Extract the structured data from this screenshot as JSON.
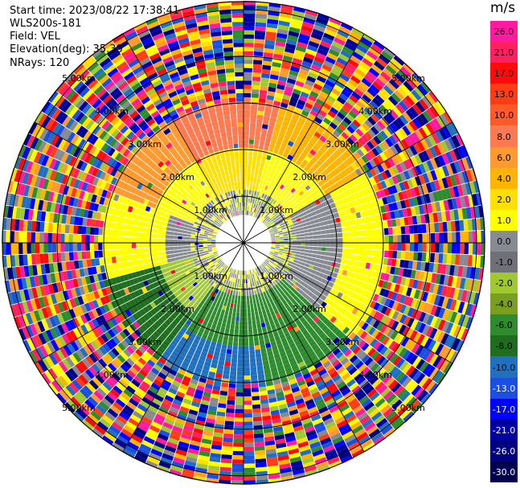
{
  "header": {
    "start_time": "Start time: 2023/08/22 17:38:41",
    "instrument": "WLS200s-181",
    "field": "Field: VEL",
    "elevation": "Elevation(deg): 35.30",
    "nrays": "NRays: 120"
  },
  "colorbar": {
    "unit": "m/s",
    "labels": [
      "26.0",
      "21.0",
      "17.0",
      "13.0",
      "10.0",
      "8.0",
      "6.0",
      "4.0",
      "2.0",
      "1.0",
      "0.0",
      "-1.0",
      "-2.0",
      "-4.0",
      "-6.0",
      "-8.0",
      "-10.0",
      "-13.0",
      "-17.0",
      "-21.0",
      "-26.0",
      "-30.0"
    ],
    "colors": [
      "#ff1aa0",
      "#ff2060",
      "#ff0a0a",
      "#ff3c14",
      "#ff5a28",
      "#ff7a50",
      "#ff9a30",
      "#ffb400",
      "#ffe000",
      "#ffff00",
      "#888a92",
      "#707078",
      "#a0c830",
      "#7a9e20",
      "#2e8b2e",
      "#1f6e1f",
      "#2070c0",
      "#1a4fe0",
      "#0000ff",
      "#0000a0",
      "#000080",
      "#000050"
    ]
  },
  "ppi": {
    "ring_labels": [
      "1.00km",
      "2.00km",
      "3.00km",
      "4.00km",
      "5.00km"
    ]
  }
}
